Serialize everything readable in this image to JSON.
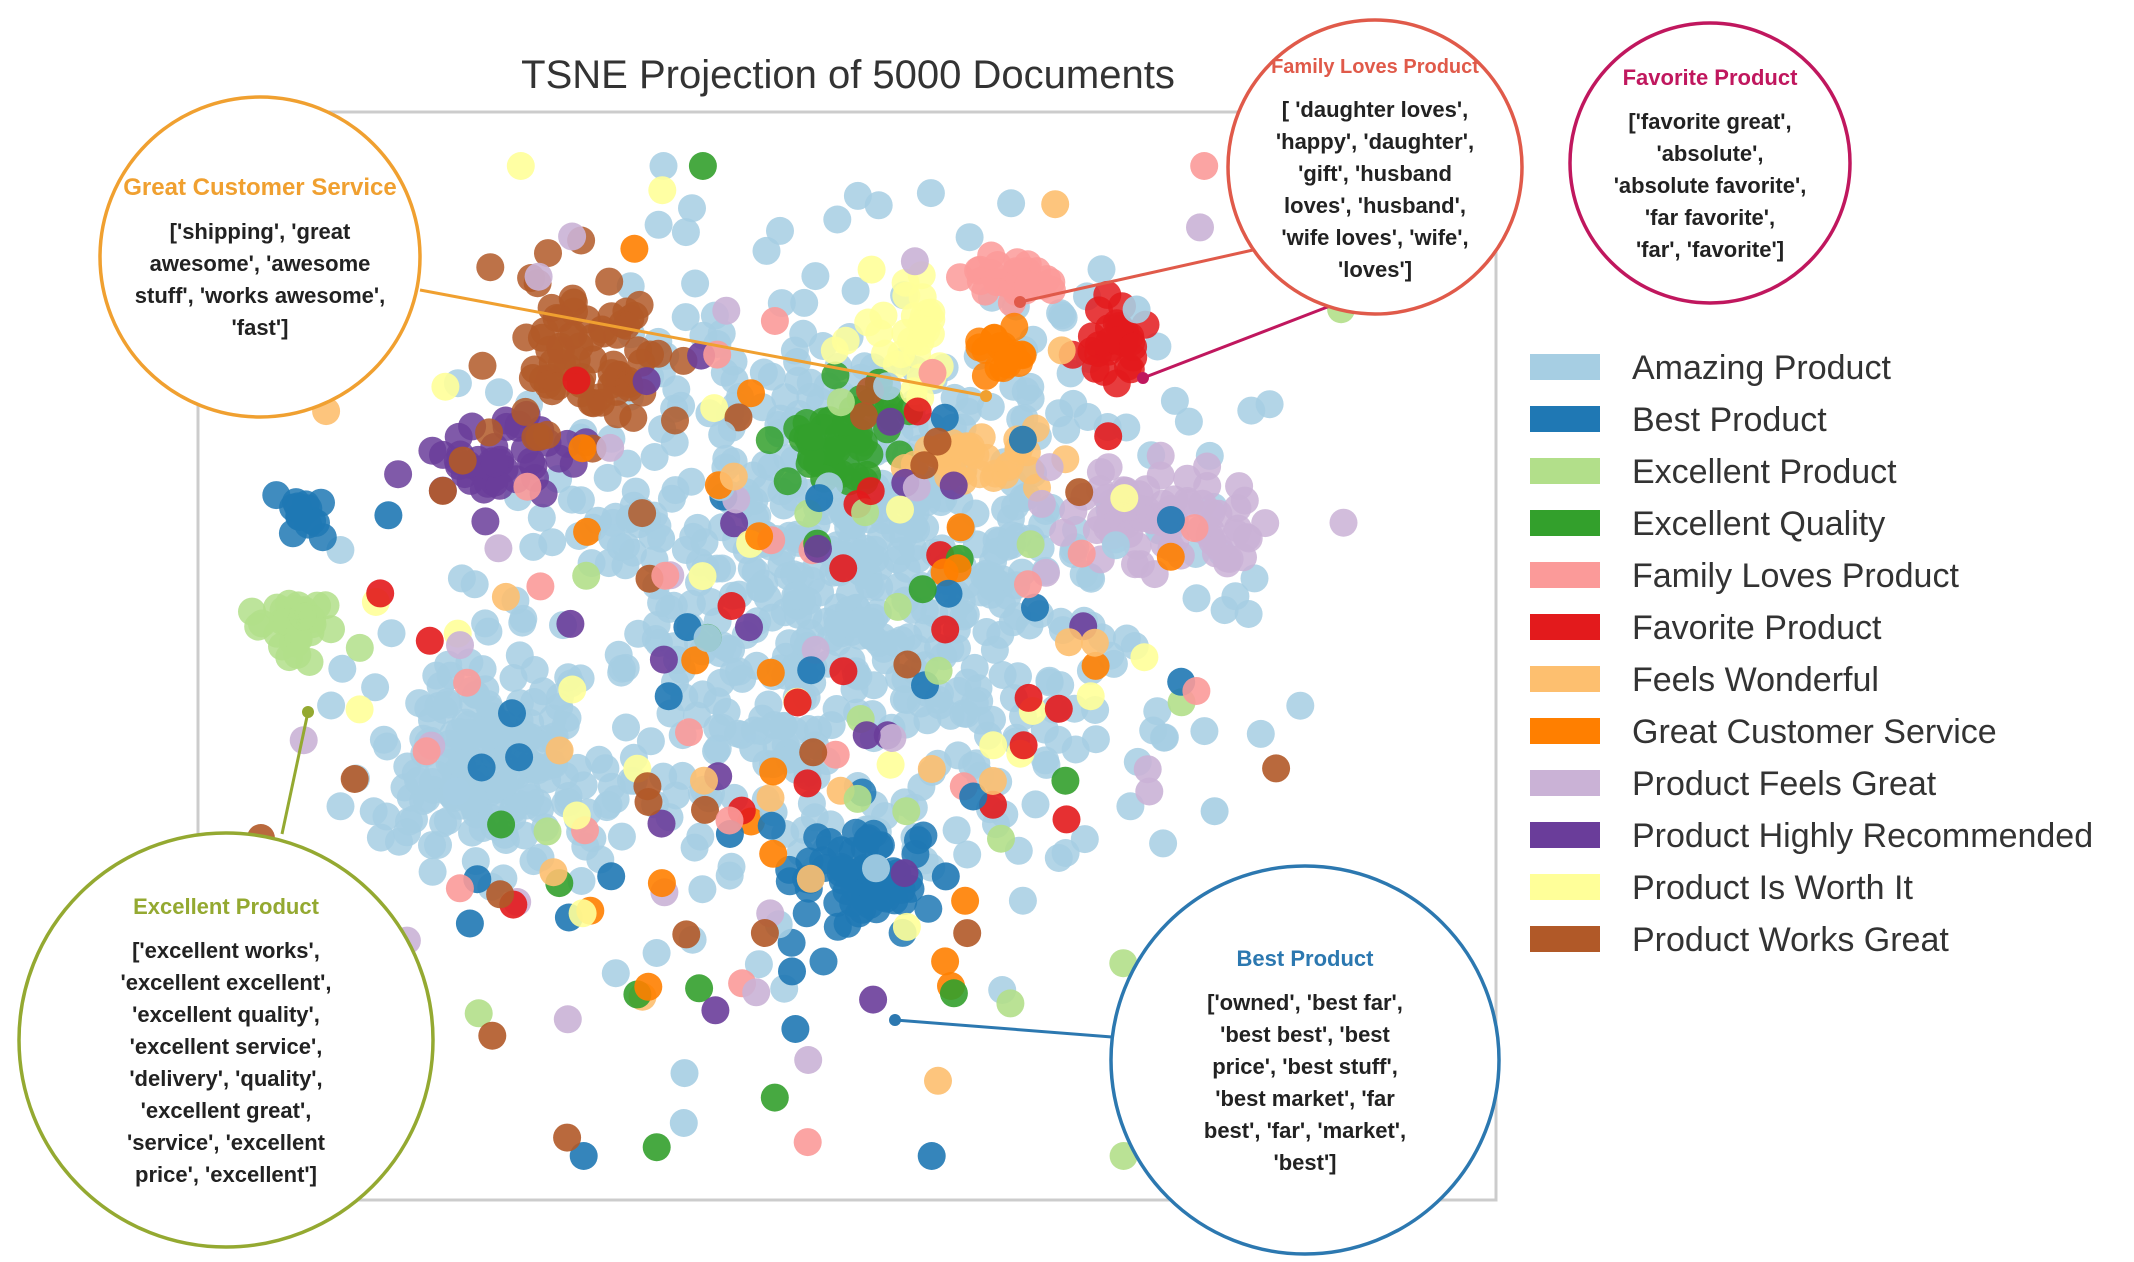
{
  "chart_data": {
    "type": "scatter",
    "title": "TSNE Projection of 5000 Documents",
    "xlabel": "",
    "ylabel": "",
    "grid": false,
    "legend_position": "right",
    "legend": [
      {
        "name": "Amazing Product",
        "color": "#a6cee3"
      },
      {
        "name": "Best Product",
        "color": "#1f78b4"
      },
      {
        "name": "Excellent Product",
        "color": "#b2df8a"
      },
      {
        "name": "Excellent Quality",
        "color": "#33a02c"
      },
      {
        "name": "Family Loves Product",
        "color": "#fb9a99"
      },
      {
        "name": "Favorite Product",
        "color": "#e31a1c"
      },
      {
        "name": "Feels Wonderful",
        "color": "#fdbf6f"
      },
      {
        "name": "Great Customer Service",
        "color": "#ff7f00"
      },
      {
        "name": "Product Feels Great",
        "color": "#cab2d6"
      },
      {
        "name": "Product Highly Recommended",
        "color": "#6a3d9a"
      },
      {
        "name": "Product Is Worth It",
        "color": "#ffff99"
      },
      {
        "name": "Product Works Great",
        "color": "#b15928"
      }
    ],
    "clusters": [
      {
        "series": "Amazing Product",
        "x": 0.5,
        "y": 0.42,
        "points": 700,
        "sx": 0.12,
        "sy": 0.13
      },
      {
        "series": "Amazing Product",
        "x": 0.23,
        "y": 0.6,
        "points": 180,
        "sx": 0.05,
        "sy": 0.05
      },
      {
        "series": "Best Product",
        "x": 0.51,
        "y": 0.71,
        "points": 70,
        "sx": 0.025,
        "sy": 0.025
      },
      {
        "series": "Best Product",
        "x": 0.08,
        "y": 0.37,
        "points": 14,
        "sx": 0.012,
        "sy": 0.012
      },
      {
        "series": "Excellent Product",
        "x": 0.08,
        "y": 0.47,
        "points": 35,
        "sx": 0.018,
        "sy": 0.013
      },
      {
        "series": "Excellent Quality",
        "x": 0.5,
        "y": 0.3,
        "points": 45,
        "sx": 0.022,
        "sy": 0.025
      },
      {
        "series": "Family Loves Product",
        "x": 0.63,
        "y": 0.15,
        "points": 30,
        "sx": 0.018,
        "sy": 0.012
      },
      {
        "series": "Favorite Product",
        "x": 0.71,
        "y": 0.21,
        "points": 30,
        "sx": 0.012,
        "sy": 0.015
      },
      {
        "series": "Feels Wonderful",
        "x": 0.6,
        "y": 0.32,
        "points": 35,
        "sx": 0.025,
        "sy": 0.012
      },
      {
        "series": "Great Customer Service",
        "x": 0.62,
        "y": 0.22,
        "points": 18,
        "sx": 0.012,
        "sy": 0.012
      },
      {
        "series": "Product Feels Great",
        "x": 0.74,
        "y": 0.37,
        "points": 85,
        "sx": 0.04,
        "sy": 0.022
      },
      {
        "series": "Product Highly Recommended",
        "x": 0.23,
        "y": 0.32,
        "points": 45,
        "sx": 0.03,
        "sy": 0.02
      },
      {
        "series": "Product Is Worth It",
        "x": 0.55,
        "y": 0.2,
        "points": 30,
        "sx": 0.02,
        "sy": 0.025
      },
      {
        "series": "Product Works Great",
        "x": 0.3,
        "y": 0.22,
        "points": 80,
        "sx": 0.035,
        "sy": 0.045
      }
    ],
    "callouts": [
      {
        "series": "Great Customer Service",
        "title": "Great Customer Service",
        "words": "['shipping', 'great awesome', 'awesome stuff', 'works awesome', 'fast']",
        "color": "#f0a030"
      },
      {
        "series": "Family Loves Product",
        "title": "Family Loves Product",
        "words": "[ 'daughter loves', 'happy', 'daughter', 'gift', 'husband loves', 'husband', 'wife loves', 'wife', 'loves']",
        "color": "#e05a4a"
      },
      {
        "series": "Favorite Product",
        "title": "Favorite Product",
        "words": "['favorite great', 'absolute', 'absolute favorite', 'far favorite', 'far', 'favorite']",
        "color": "#c0175e"
      },
      {
        "series": "Excellent Product",
        "title": "Excellent Product",
        "words": "['excellent works', 'excellent excellent', 'excellent quality', 'excellent service', 'delivery', 'quality', 'excellent great', 'service', 'excellent price', 'excellent']",
        "color": "#94a931"
      },
      {
        "series": "Best Product",
        "title": "Best Product",
        "words": "['owned', 'best far', 'best best', 'best price', 'best stuff', 'best market', 'far best', 'far', 'market', 'best']",
        "color": "#2c78b0"
      }
    ]
  }
}
